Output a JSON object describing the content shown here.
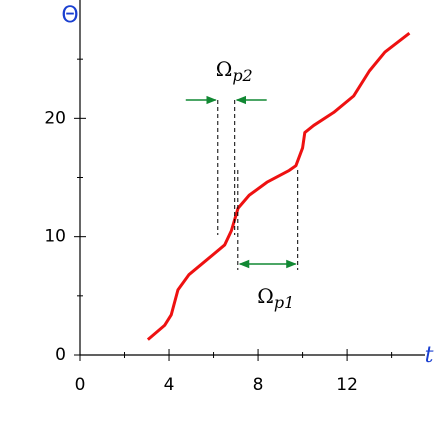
{
  "chart_data": {
    "type": "line",
    "x_label": "t",
    "y_label": "Θ",
    "x": [
      3.05,
      3.8,
      4.1,
      4.4,
      4.9,
      5.8,
      6.5,
      6.8,
      7.1,
      7.6,
      8.4,
      9.4,
      9.7,
      10.0,
      10.1,
      10.5,
      11.4,
      12.3,
      13.0,
      13.7,
      14.8
    ],
    "series": [
      {
        "color": "#ee1111",
        "values": [
          1.3,
          2.5,
          3.4,
          5.5,
          6.8,
          8.2,
          9.3,
          10.5,
          12.4,
          13.5,
          14.6,
          15.6,
          16.0,
          17.5,
          18.8,
          19.4,
          20.5,
          21.9,
          24.0,
          25.6,
          27.2
        ]
      }
    ],
    "xlim": [
      0,
      15.5
    ],
    "ylim": [
      0,
      30
    ],
    "xticks": [
      0,
      4,
      8,
      12
    ],
    "yticks": [
      0,
      10,
      20
    ],
    "x_minor_ticks": [
      2,
      6,
      10,
      14
    ],
    "y_minor_ticks": [
      5,
      15,
      25
    ],
    "intervals": [
      {
        "symbol": "Ω",
        "subscript": "p2",
        "start": 6.19,
        "end": 6.95
      },
      {
        "symbol": "Ω",
        "subscript": "p1",
        "start": 7.09,
        "end": 9.78
      }
    ]
  }
}
